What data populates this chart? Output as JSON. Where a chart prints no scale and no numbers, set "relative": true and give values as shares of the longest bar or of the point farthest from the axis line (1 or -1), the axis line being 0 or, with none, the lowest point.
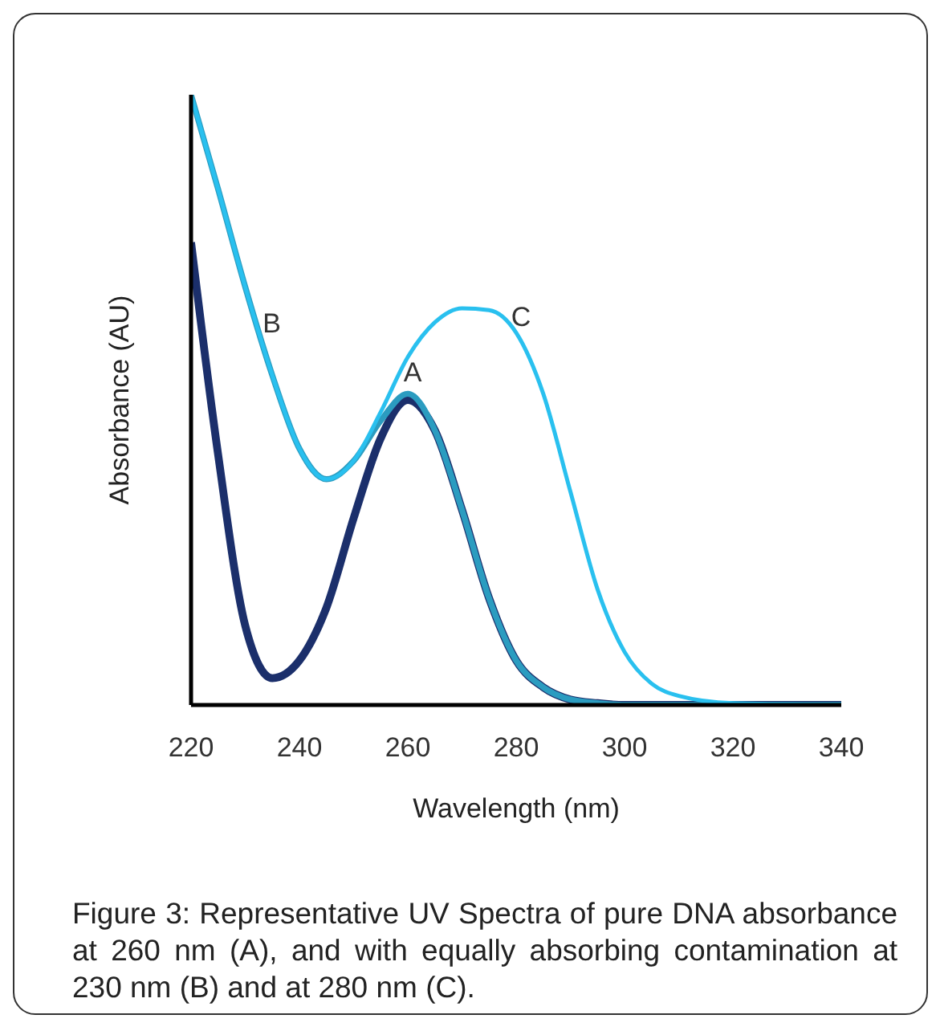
{
  "chart_data": {
    "type": "line",
    "relative": true,
    "xlabel": "Wavelength (nm)",
    "ylabel": "Absorbance (AU)",
    "xlim": [
      220,
      340
    ],
    "xticks": [
      220,
      240,
      260,
      280,
      300,
      320,
      340
    ],
    "grid": false,
    "legend": false,
    "marker": "none",
    "line_style": "solid",
    "x": [
      220,
      225,
      230,
      235,
      240,
      245,
      250,
      255,
      260,
      265,
      270,
      275,
      280,
      285,
      290,
      295,
      300,
      305,
      310,
      320,
      340
    ],
    "series": [
      {
        "color": "#1b2f6b",
        "values": [
          0.758,
          0.41,
          0.13,
          0.044,
          0.073,
          0.16,
          0.306,
          0.437,
          0.5,
          0.45,
          0.32,
          0.175,
          0.073,
          0.029,
          0.009,
          0.003,
          0,
          0,
          0,
          0,
          0
        ]
      },
      {
        "color": "#2b9cc0",
        "values": [
          1,
          0.845,
          0.685,
          0.54,
          0.42,
          0.37,
          0.4,
          0.466,
          0.51,
          0.45,
          0.32,
          0.175,
          0.073,
          0.029,
          0.009,
          0.003,
          0,
          0,
          0,
          0,
          0
        ]
      },
      {
        "color": "#29c0ef",
        "values": [
          1,
          0.845,
          0.685,
          0.54,
          0.42,
          0.37,
          0.4,
          0.48,
          0.57,
          0.627,
          0.65,
          0.647,
          0.61,
          0.51,
          0.35,
          0.19,
          0.087,
          0.035,
          0.015,
          0.003,
          0
        ]
      }
    ],
    "annotations": [
      {
        "text": "A",
        "x": 260,
        "y": 0.52
      },
      {
        "text": "B",
        "x": 234,
        "y": 0.6
      },
      {
        "text": "C",
        "x": 280,
        "y": 0.61
      },
      "Figure 3: Representative UV Spectra of pure DNA absorbance at 260 nm (A), and with equally absorbing contamination at 230 nm (B) and at 280 nm (C)."
    ]
  }
}
